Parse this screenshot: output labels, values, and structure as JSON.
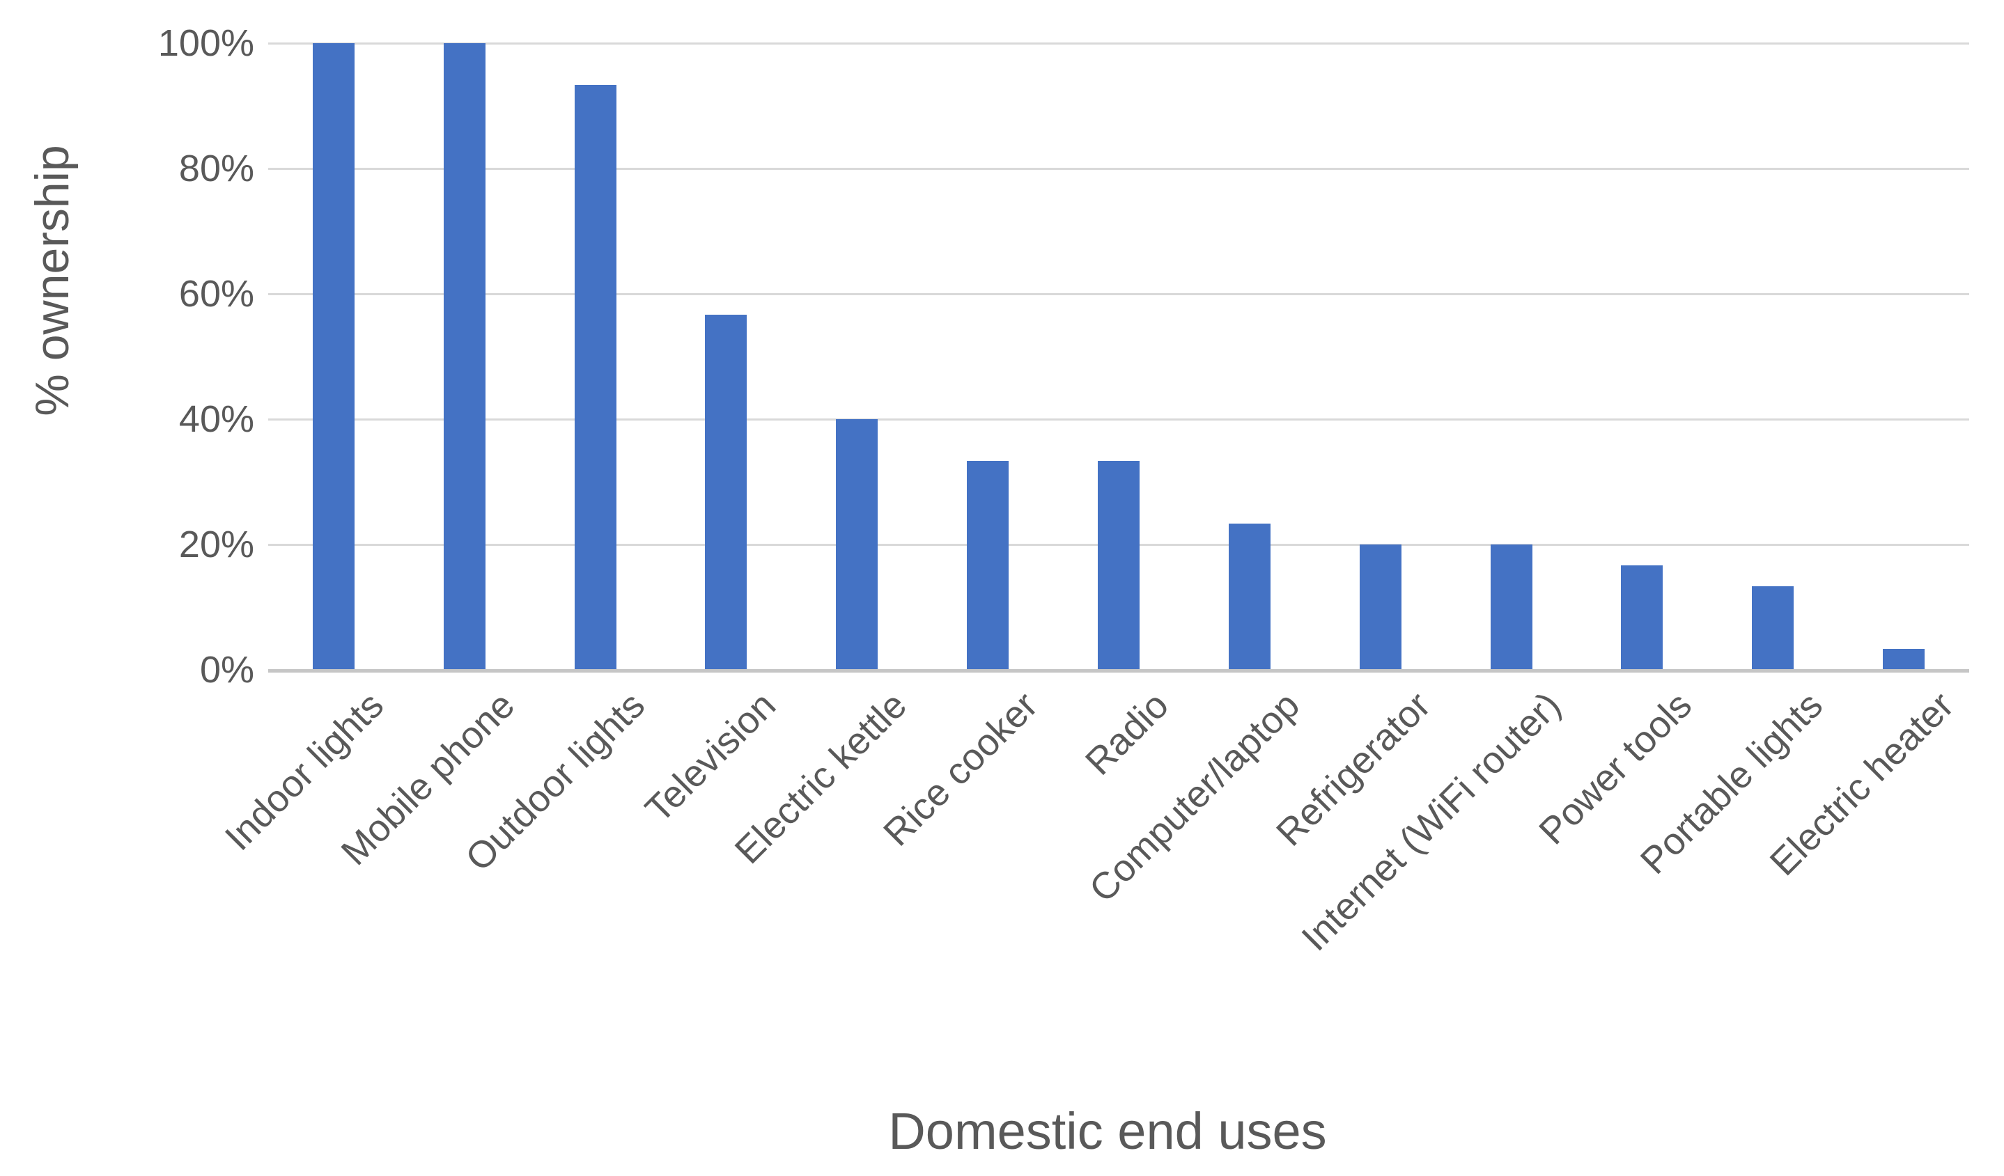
{
  "chart_data": {
    "type": "bar",
    "title": "",
    "xlabel": "Domestic end uses",
    "ylabel": "% ownership",
    "categories": [
      "Indoor lights",
      "Mobile phone",
      "Outdoor lights",
      "Television",
      "Electric kettle",
      "Rice cooker",
      "Radio",
      "Computer/laptop",
      "Refrigerator",
      "Internet (WiFi router)",
      "Power tools",
      "Portable lights",
      "Electric heater"
    ],
    "values": [
      100,
      100,
      93.3,
      56.7,
      40,
      33.3,
      33.3,
      23.3,
      20,
      20,
      16.7,
      13.3,
      3.3
    ],
    "y_ticks": [
      "0%",
      "20%",
      "40%",
      "60%",
      "80%",
      "100%"
    ],
    "ylim": [
      0,
      100
    ],
    "y_tick_step": 20,
    "grid": "horizontal",
    "legend": "none",
    "bar_color": "#4472C4",
    "gridline_color": "#D9D9D9",
    "axis_line_color": "#C6C6C6",
    "text_color": "#595959",
    "background_color": "#FFFFFF"
  }
}
